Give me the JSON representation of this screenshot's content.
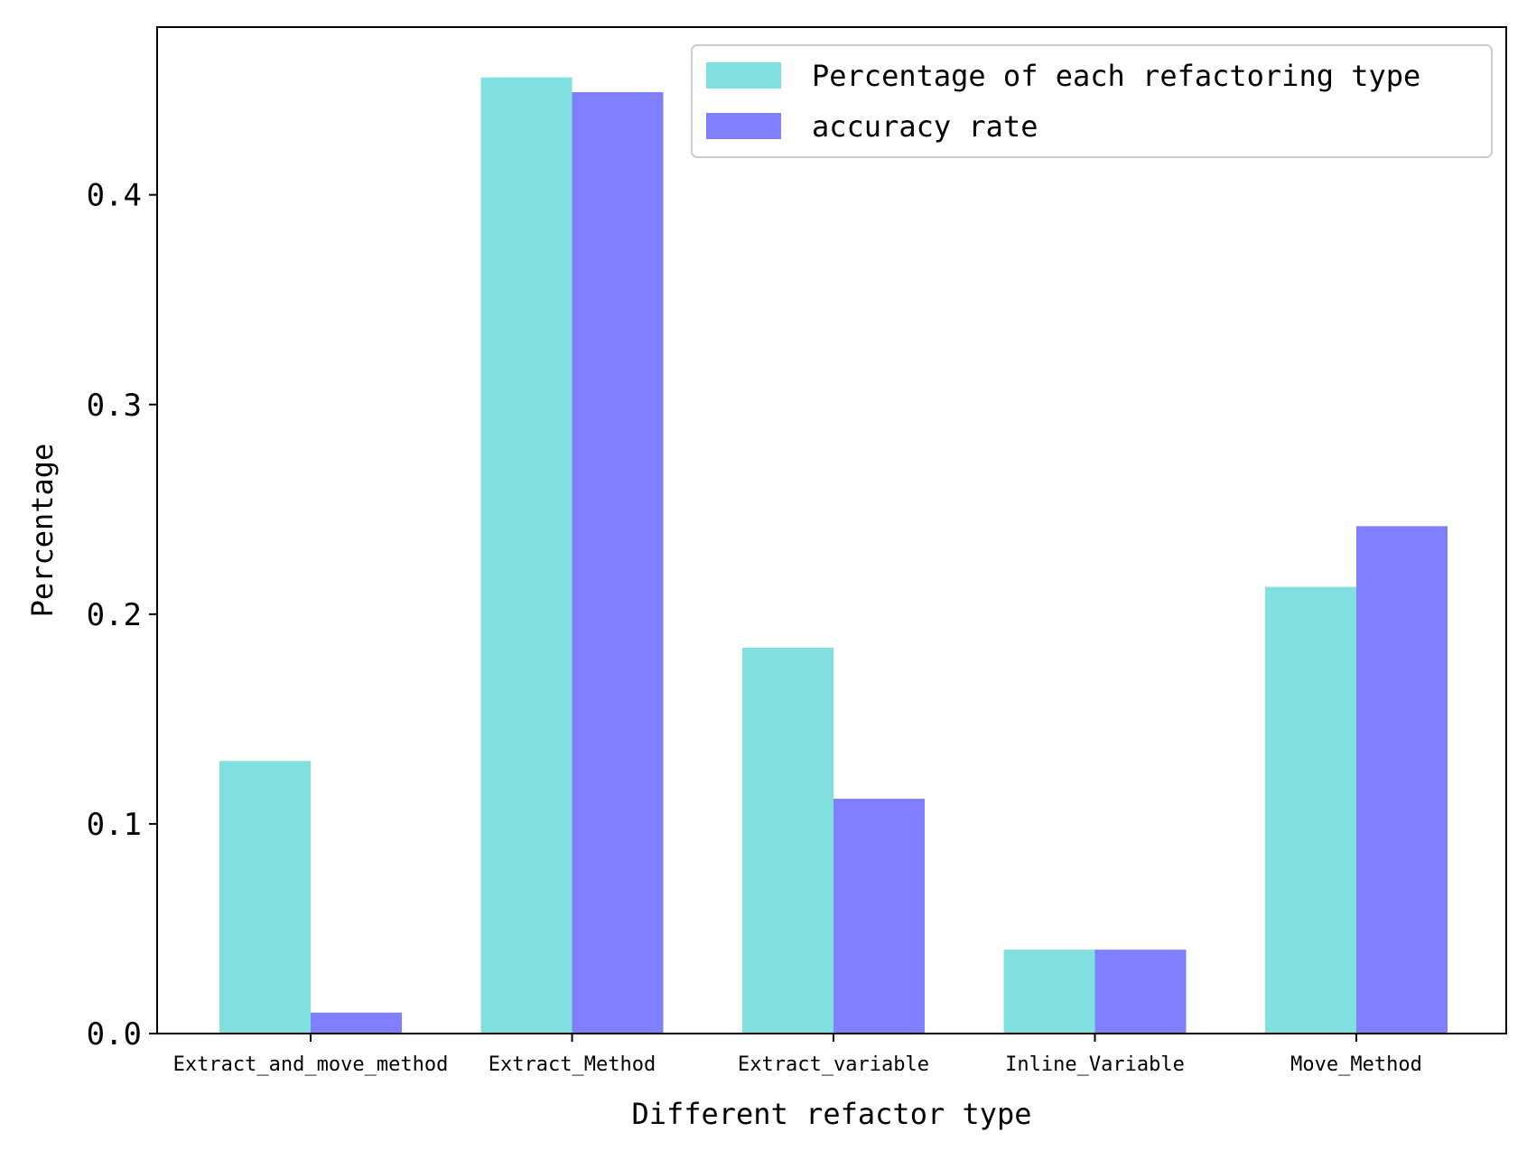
{
  "chart_data": {
    "type": "bar",
    "title": "",
    "xlabel": "Different refactor type",
    "ylabel": "Percentage",
    "categories": [
      "Extract_and_move_method",
      "Extract_Method",
      "Extract_variable",
      "Inline_Variable",
      "Move_Method"
    ],
    "series": [
      {
        "name": "Percentage of each refactoring type",
        "color": "#80dfdf",
        "values": [
          0.13,
          0.456,
          0.184,
          0.04,
          0.213
        ]
      },
      {
        "name": "accuracy rate",
        "color": "#8080ff",
        "values": [
          0.01,
          0.449,
          0.112,
          0.04,
          0.242
        ]
      }
    ],
    "ylim": [
      0,
      0.48
    ],
    "yticks": [
      0.0,
      0.1,
      0.2,
      0.3,
      0.4
    ],
    "ytick_labels": [
      "0.0",
      "0.1",
      "0.2",
      "0.3",
      "0.4"
    ],
    "grid": false,
    "legend_position": "top-right"
  }
}
